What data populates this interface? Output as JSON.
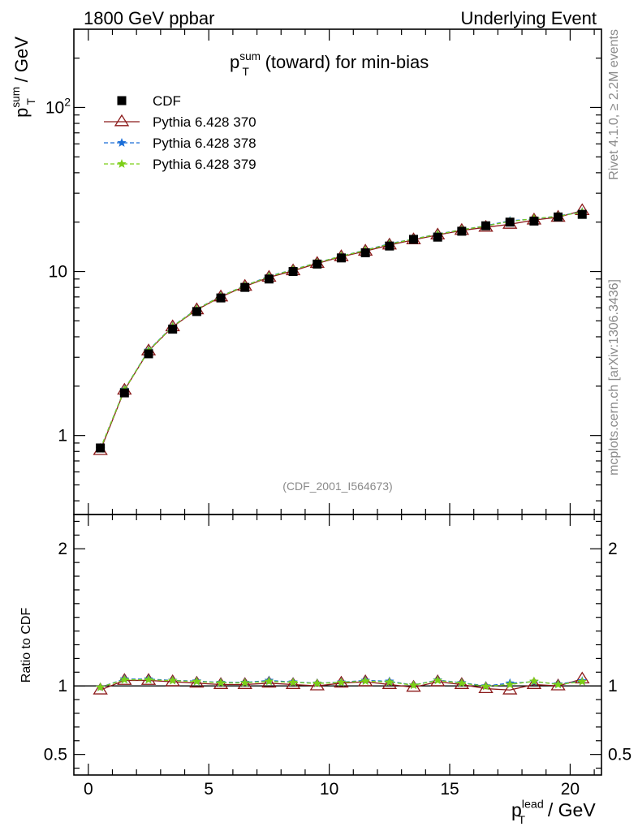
{
  "header": {
    "left": "1800 GeV ppbar",
    "right": "Underlying Event"
  },
  "side": {
    "rivet": "Rivet 4.1.0, ≥ 2.2M events",
    "mcplots": "mcplots.cern.ch [arXiv:1306.3436]"
  },
  "watermark": "(CDF_2001_I564673)",
  "chart_data": [
    {
      "type": "line",
      "scale": "log",
      "title": {
        "main": "p",
        "sup": "sum",
        "sub": "T",
        "rest": " (toward) for min-bias"
      },
      "ylabel": {
        "main": "p",
        "sup": "sum",
        "sub": "T",
        "rest": " / GeV"
      },
      "xlim": [
        -0.6,
        21.3
      ],
      "ylim": [
        0.33,
        300
      ],
      "yticks": [
        {
          "value": 1,
          "label": "1"
        },
        {
          "value": 10,
          "label": "10"
        },
        {
          "value": 100,
          "label": "10",
          "sup": "2"
        }
      ],
      "legend_position": "top-left",
      "x": [
        0.5,
        1.5,
        2.5,
        3.5,
        4.5,
        5.5,
        6.5,
        7.5,
        8.5,
        9.5,
        10.5,
        11.5,
        12.5,
        13.5,
        14.5,
        15.5,
        16.5,
        17.5,
        18.5,
        19.5,
        20.5
      ],
      "series": [
        {
          "name": "CDF",
          "marker": "square",
          "color": "#000000",
          "values": [
            0.84,
            1.82,
            3.15,
            4.45,
            5.7,
            6.9,
            8.0,
            9.0,
            10.0,
            11.1,
            12.1,
            13.0,
            14.3,
            15.7,
            16.2,
            17.6,
            19.0,
            20.0,
            20.3,
            21.5,
            22.3
          ]
        },
        {
          "name": "Pythia 6.428 370",
          "marker": "triangle",
          "color": "#8b1a1a",
          "values": [
            0.81,
            1.89,
            3.28,
            4.6,
            5.84,
            7.0,
            8.12,
            9.22,
            10.1,
            11.2,
            12.3,
            13.3,
            14.5,
            15.6,
            16.7,
            17.8,
            18.6,
            19.4,
            20.6,
            21.4,
            23.5
          ]
        },
        {
          "name": "Pythia 6.428 378",
          "marker": "star",
          "color": "#1a6ed8",
          "values": [
            0.83,
            1.91,
            3.31,
            4.64,
            5.9,
            7.08,
            8.2,
            9.35,
            10.28,
            11.32,
            12.43,
            13.5,
            14.78,
            15.8,
            16.9,
            18.0,
            19.0,
            20.4,
            20.9,
            21.8,
            23.1
          ]
        },
        {
          "name": "Pythia 6.428 379",
          "marker": "star",
          "color": "#7ccf17",
          "values": [
            0.83,
            1.9,
            3.29,
            4.62,
            5.88,
            7.05,
            8.18,
            9.3,
            10.25,
            11.3,
            12.4,
            13.45,
            14.7,
            15.78,
            16.85,
            17.95,
            18.95,
            20.2,
            21.0,
            21.7,
            23.0
          ]
        }
      ]
    },
    {
      "type": "line",
      "scale": "linear",
      "ylabel": "Ratio to CDF",
      "xlabel": {
        "main": "p",
        "sup": "lead",
        "sub": "T",
        "rest": " / GeV"
      },
      "xlim": [
        -0.6,
        21.3
      ],
      "ylim": [
        0.35,
        2.25
      ],
      "yticks": [
        {
          "value": 0.5,
          "label": "0.5"
        },
        {
          "value": 1,
          "label": "1"
        },
        {
          "value": 2,
          "label": "2"
        }
      ],
      "xticks": [
        {
          "value": 0,
          "label": "0"
        },
        {
          "value": 5,
          "label": "5"
        },
        {
          "value": 10,
          "label": "10"
        },
        {
          "value": 15,
          "label": "15"
        },
        {
          "value": 20,
          "label": "20"
        }
      ],
      "x": [
        0.5,
        1.5,
        2.5,
        3.5,
        4.5,
        5.5,
        6.5,
        7.5,
        8.5,
        9.5,
        10.5,
        11.5,
        12.5,
        13.5,
        14.5,
        15.5,
        16.5,
        17.5,
        18.5,
        19.5,
        20.5
      ],
      "series": [
        {
          "name": "Pythia 6.428 370",
          "marker": "triangle",
          "color": "#8b1a1a",
          "values": [
            0.97,
            1.04,
            1.04,
            1.03,
            1.02,
            1.01,
            1.01,
            1.02,
            1.01,
            1.0,
            1.02,
            1.03,
            1.01,
            0.99,
            1.03,
            1.01,
            0.98,
            0.97,
            1.01,
            1.0,
            1.05
          ]
        },
        {
          "name": "Pythia 6.428 378",
          "marker": "star",
          "color": "#1a6ed8",
          "values": [
            0.99,
            1.05,
            1.05,
            1.04,
            1.035,
            1.025,
            1.025,
            1.04,
            1.028,
            1.02,
            1.027,
            1.04,
            1.034,
            1.006,
            1.043,
            1.023,
            1.0,
            1.02,
            1.03,
            1.014,
            1.036
          ]
        },
        {
          "name": "Pythia 6.428 379",
          "marker": "star",
          "color": "#7ccf17",
          "values": [
            0.99,
            1.045,
            1.045,
            1.038,
            1.032,
            1.022,
            1.022,
            1.033,
            1.025,
            1.018,
            1.025,
            1.035,
            1.028,
            1.005,
            1.04,
            1.02,
            0.997,
            1.01,
            1.034,
            1.01,
            1.031
          ]
        }
      ]
    }
  ]
}
